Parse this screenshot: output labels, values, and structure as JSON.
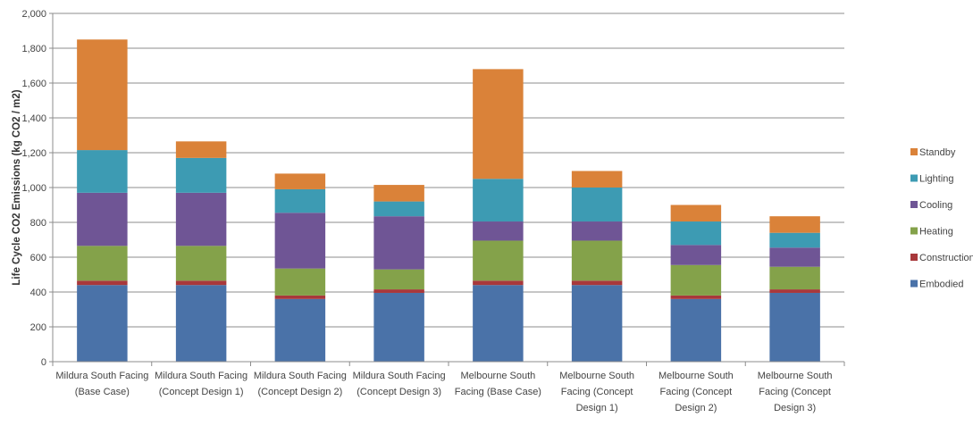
{
  "chart_data": {
    "type": "bar",
    "stacked": true,
    "title": "",
    "xlabel": "",
    "ylabel": "Life Cycle CO2 Emissions (kg CO2 / m2)",
    "ylim": [
      0,
      2000
    ],
    "yticks": [
      0,
      200,
      400,
      600,
      800,
      1000,
      1200,
      1400,
      1600,
      1800,
      2000
    ],
    "ytick_labels": [
      "0",
      "200",
      "400",
      "600",
      "800",
      "1,000",
      "1,200",
      "1,400",
      "1,600",
      "1,800",
      "2,000"
    ],
    "grid": true,
    "legend_position": "right",
    "categories": [
      [
        "Mildura South Facing",
        "(Base Case)"
      ],
      [
        "Mildura South Facing",
        "(Concept Design 1)"
      ],
      [
        "Mildura South Facing",
        "(Concept Design 2)"
      ],
      [
        "Mildura South Facing",
        "(Concept Design 3)"
      ],
      [
        "Melbourne South",
        "Facing (Base Case)"
      ],
      [
        "Melbourne South",
        "Facing (Concept",
        "Design 1)"
      ],
      [
        "Melbourne South",
        "Facing (Concept",
        "Design 2)"
      ],
      [
        "Melbourne South",
        "Facing (Concept",
        "Design 3)"
      ]
    ],
    "series": [
      {
        "name": "Embodied",
        "color": "#4a72a8",
        "values": [
          440,
          440,
          360,
          395,
          440,
          440,
          360,
          395
        ]
      },
      {
        "name": "Construction",
        "color": "#a8383b",
        "values": [
          25,
          25,
          20,
          20,
          25,
          25,
          20,
          20
        ]
      },
      {
        "name": "Heating",
        "color": "#84a24a",
        "values": [
          200,
          200,
          155,
          115,
          230,
          230,
          175,
          130
        ]
      },
      {
        "name": "Cooling",
        "color": "#6f5595",
        "values": [
          305,
          305,
          320,
          305,
          110,
          110,
          115,
          110
        ]
      },
      {
        "name": "Lighting",
        "color": "#3d9bb3",
        "values": [
          245,
          200,
          135,
          85,
          245,
          195,
          135,
          85
        ]
      },
      {
        "name": "Standby",
        "color": "#da8239",
        "values": [
          635,
          95,
          90,
          95,
          630,
          95,
          95,
          95
        ]
      }
    ]
  }
}
